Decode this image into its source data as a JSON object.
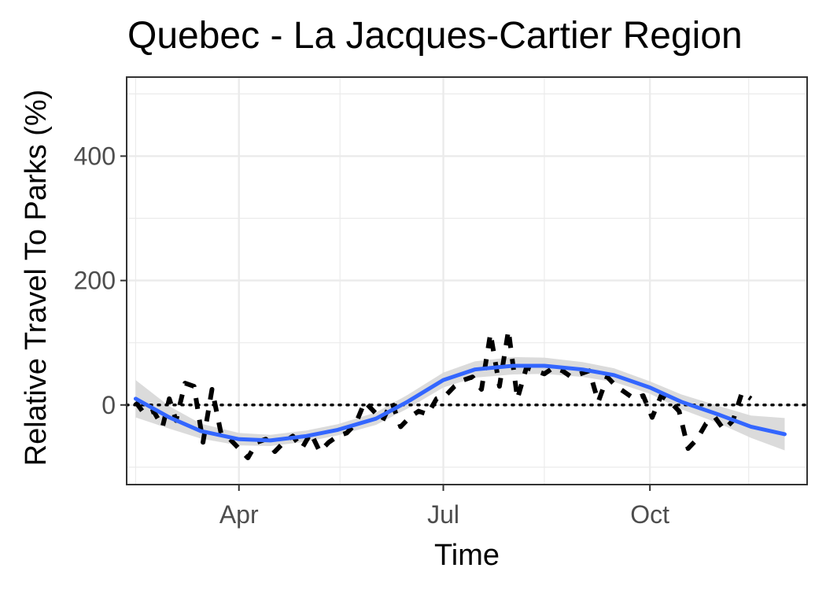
{
  "chart_data": {
    "type": "line",
    "title": "Quebec - La Jacques-Cartier Region",
    "xlabel": "Time",
    "ylabel": "Relative Travel To Parks (%)",
    "x_ticks": [
      {
        "label": "Apr",
        "date": "2020-04-01"
      },
      {
        "label": "Jul",
        "date": "2020-07-01"
      },
      {
        "label": "Oct",
        "date": "2020-10-01"
      }
    ],
    "x_range": [
      "2020-02-11",
      "2020-12-10"
    ],
    "y_ticks": [
      0,
      200,
      400
    ],
    "ylim": [
      -128,
      527
    ],
    "grid": true,
    "reference_line": {
      "y": 0,
      "style": "dotted",
      "color": "#000000"
    },
    "series": [
      {
        "style": "dashed",
        "color": "#000000",
        "x": [
          "2020-02-15",
          "2020-02-19",
          "2020-02-23",
          "2020-02-27",
          "2020-03-01",
          "2020-03-04",
          "2020-03-08",
          "2020-03-12",
          "2020-03-16",
          "2020-03-20",
          "2020-03-24",
          "2020-03-28",
          "2020-04-01",
          "2020-04-05",
          "2020-04-09",
          "2020-04-13",
          "2020-04-17",
          "2020-04-21",
          "2020-04-25",
          "2020-04-29",
          "2020-05-03",
          "2020-05-07",
          "2020-05-11",
          "2020-05-15",
          "2020-05-19",
          "2020-05-23",
          "2020-05-27",
          "2020-05-31",
          "2020-06-04",
          "2020-06-08",
          "2020-06-12",
          "2020-06-16",
          "2020-06-20",
          "2020-06-24",
          "2020-06-28",
          "2020-07-02",
          "2020-07-06",
          "2020-07-10",
          "2020-07-14",
          "2020-07-18",
          "2020-07-22",
          "2020-07-26",
          "2020-07-30",
          "2020-08-03",
          "2020-08-07",
          "2020-08-11",
          "2020-08-15",
          "2020-08-19",
          "2020-08-23",
          "2020-08-27",
          "2020-08-31",
          "2020-09-04",
          "2020-09-08",
          "2020-09-12",
          "2020-09-16",
          "2020-09-20",
          "2020-09-24",
          "2020-09-28",
          "2020-10-02",
          "2020-10-06",
          "2020-10-10",
          "2020-10-14",
          "2020-10-18",
          "2020-10-22",
          "2020-10-26",
          "2020-10-30",
          "2020-11-03",
          "2020-11-07",
          "2020-11-11",
          "2020-11-15"
        ],
        "values": [
          5,
          -15,
          -10,
          -35,
          10,
          -25,
          35,
          30,
          -60,
          25,
          -45,
          -55,
          -70,
          -85,
          -60,
          -55,
          -75,
          -60,
          -50,
          -70,
          -45,
          -75,
          -60,
          -50,
          -45,
          -30,
          5,
          -10,
          -25,
          5,
          -35,
          -20,
          -10,
          -15,
          10,
          15,
          30,
          40,
          45,
          25,
          115,
          30,
          120,
          10,
          60,
          55,
          50,
          60,
          55,
          45,
          50,
          55,
          5,
          45,
          30,
          20,
          10,
          15,
          -20,
          15,
          5,
          -10,
          -70,
          -55,
          -30,
          -20,
          -40,
          -25,
          20,
          10
        ]
      },
      {
        "name": "",
        "style": "smooth",
        "color": "#3366ff",
        "ribbon_color": "#d9d9d9",
        "x": [
          "2020-02-15",
          "2020-03-01",
          "2020-03-15",
          "2020-04-01",
          "2020-04-15",
          "2020-05-01",
          "2020-05-15",
          "2020-06-01",
          "2020-06-15",
          "2020-07-01",
          "2020-07-15",
          "2020-08-01",
          "2020-08-15",
          "2020-09-01",
          "2020-09-15",
          "2020-10-01",
          "2020-10-15",
          "2020-11-01",
          "2020-11-15",
          "2020-11-30"
        ],
        "values": [
          10,
          -20,
          -42,
          -55,
          -57,
          -50,
          -40,
          -22,
          5,
          40,
          57,
          63,
          63,
          57,
          48,
          28,
          5,
          -16,
          -35,
          -47
        ],
        "ci_halfwidth": [
          30,
          18,
          12,
          10,
          9,
          9,
          9,
          10,
          11,
          12,
          13,
          14,
          13,
          12,
          11,
          10,
          12,
          14,
          18,
          26
        ]
      }
    ]
  }
}
